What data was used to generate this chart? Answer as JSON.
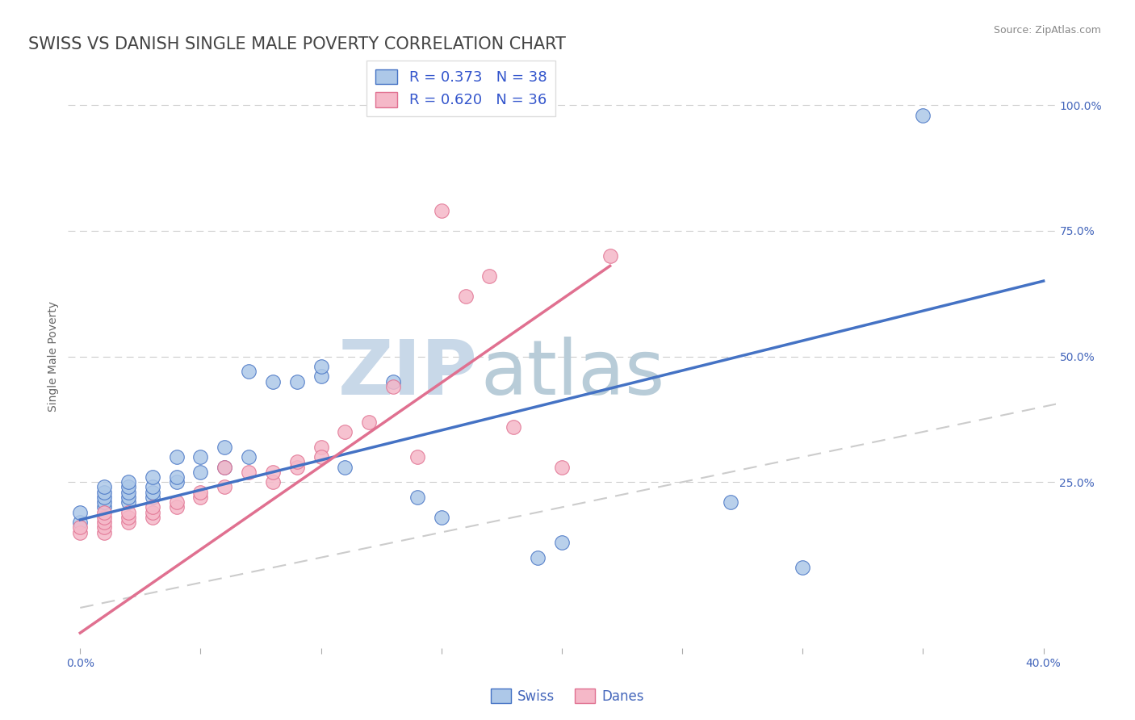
{
  "title": "SWISS VS DANISH SINGLE MALE POVERTY CORRELATION CHART",
  "source_text": "Source: ZipAtlas.com",
  "ylabel": "Single Male Poverty",
  "xlim": [
    0.0,
    0.4
  ],
  "ylim": [
    -0.08,
    1.08
  ],
  "yticks_right": [
    0.25,
    0.5,
    0.75,
    1.0
  ],
  "ytick_right_labels": [
    "25.0%",
    "50.0%",
    "75.0%",
    "100.0%"
  ],
  "swiss_R": 0.373,
  "swiss_N": 38,
  "danish_R": 0.62,
  "danish_N": 36,
  "swiss_color": "#adc8e8",
  "danish_color": "#f5b8c8",
  "swiss_line_color": "#4472c4",
  "danish_line_color": "#e07090",
  "ref_line_color": "#cccccc",
  "grid_color": "#cccccc",
  "watermark_zip_color": "#c8d8e8",
  "watermark_atlas_color": "#b8ccd8",
  "swiss_x": [
    0.0,
    0.0,
    0.01,
    0.01,
    0.01,
    0.01,
    0.01,
    0.02,
    0.02,
    0.02,
    0.02,
    0.02,
    0.03,
    0.03,
    0.03,
    0.03,
    0.04,
    0.04,
    0.04,
    0.05,
    0.05,
    0.06,
    0.06,
    0.07,
    0.07,
    0.08,
    0.09,
    0.1,
    0.1,
    0.11,
    0.13,
    0.14,
    0.15,
    0.19,
    0.2,
    0.27,
    0.3,
    0.35
  ],
  "swiss_y": [
    0.17,
    0.19,
    0.2,
    0.21,
    0.22,
    0.23,
    0.24,
    0.21,
    0.22,
    0.23,
    0.24,
    0.25,
    0.22,
    0.23,
    0.24,
    0.26,
    0.25,
    0.26,
    0.3,
    0.27,
    0.3,
    0.28,
    0.32,
    0.3,
    0.47,
    0.45,
    0.45,
    0.46,
    0.48,
    0.28,
    0.45,
    0.22,
    0.18,
    0.1,
    0.13,
    0.21,
    0.08,
    0.98
  ],
  "danish_x": [
    0.0,
    0.0,
    0.01,
    0.01,
    0.01,
    0.01,
    0.01,
    0.02,
    0.02,
    0.02,
    0.03,
    0.03,
    0.03,
    0.04,
    0.04,
    0.05,
    0.05,
    0.06,
    0.06,
    0.07,
    0.08,
    0.08,
    0.09,
    0.09,
    0.1,
    0.1,
    0.11,
    0.12,
    0.13,
    0.14,
    0.15,
    0.16,
    0.17,
    0.18,
    0.2,
    0.22
  ],
  "danish_y": [
    0.15,
    0.16,
    0.15,
    0.16,
    0.17,
    0.18,
    0.19,
    0.17,
    0.18,
    0.19,
    0.18,
    0.19,
    0.2,
    0.2,
    0.21,
    0.22,
    0.23,
    0.24,
    0.28,
    0.27,
    0.25,
    0.27,
    0.28,
    0.29,
    0.32,
    0.3,
    0.35,
    0.37,
    0.44,
    0.3,
    0.79,
    0.62,
    0.66,
    0.36,
    0.28,
    0.7
  ],
  "title_fontsize": 15,
  "label_fontsize": 10,
  "tick_fontsize": 10,
  "background_color": "#ffffff",
  "swiss_line_x0": 0.0,
  "swiss_line_y0": 0.175,
  "swiss_line_x1": 0.4,
  "swiss_line_y1": 0.65,
  "danish_line_x0": 0.0,
  "danish_line_y0": -0.05,
  "danish_line_x1": 0.22,
  "danish_line_y1": 0.68
}
